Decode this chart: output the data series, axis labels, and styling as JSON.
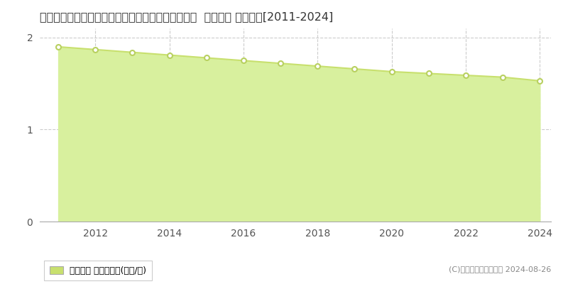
{
  "title": "新潟県上越市大潟区高橋新田字南舟入１６６番１外  地価公示 地価推移[2011-2024]",
  "years": [
    2011,
    2012,
    2013,
    2014,
    2015,
    2016,
    2017,
    2018,
    2019,
    2020,
    2021,
    2022,
    2023,
    2024
  ],
  "values": [
    1.9,
    1.87,
    1.84,
    1.81,
    1.78,
    1.75,
    1.72,
    1.69,
    1.66,
    1.63,
    1.61,
    1.59,
    1.57,
    1.53
  ],
  "ylim": [
    0,
    2.1
  ],
  "yticks": [
    0,
    1,
    2
  ],
  "line_color": "#c8e06e",
  "fill_color": "#d8f09e",
  "marker_face_color": "#ffffff",
  "marker_edge_color": "#b8d060",
  "grid_color": "#cccccc",
  "bg_color": "#ffffff",
  "legend_label": "地価公示 平均坪単価(万円/坪)",
  "legend_marker_color": "#c8e06e",
  "copyright_text": "(C)土地価格ドットコム 2024-08-26",
  "title_fontsize": 11.5,
  "axis_fontsize": 10,
  "legend_fontsize": 9,
  "copyright_fontsize": 8
}
